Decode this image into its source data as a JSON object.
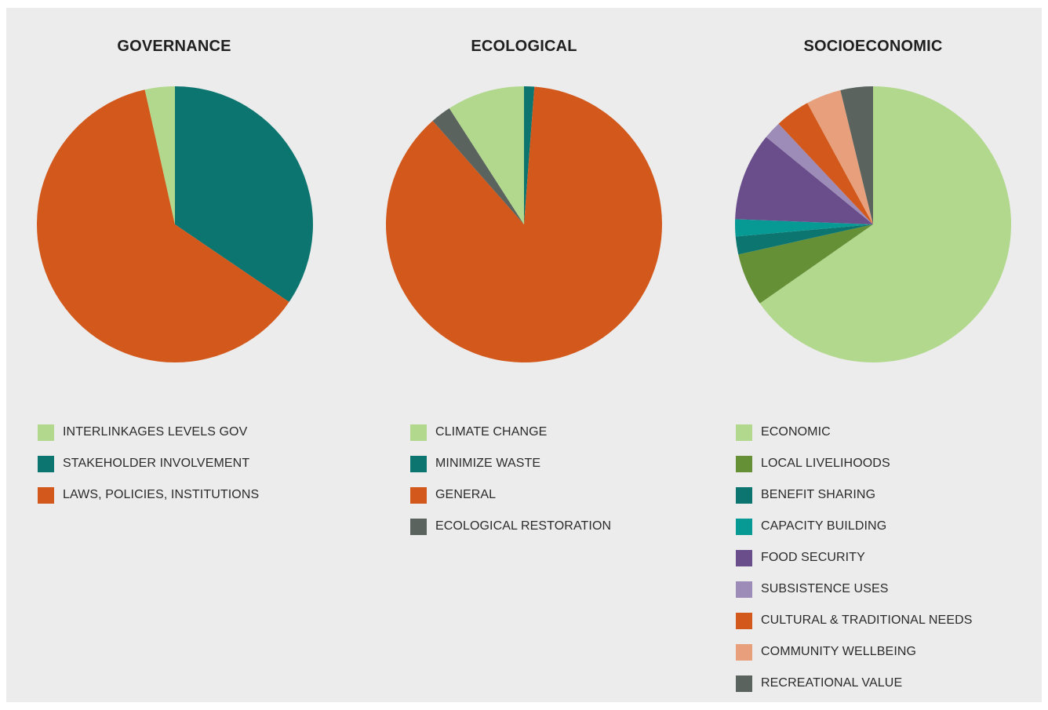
{
  "chart_data": [
    {
      "type": "pie",
      "title": "GOVERNANCE",
      "legend_placement": "bottom-left",
      "start_angle_deg": 0,
      "direction": "clockwise",
      "slices": [
        {
          "label": "STAKEHOLDER INVOLVEMENT",
          "value": 34.5,
          "color": "#0d7570"
        },
        {
          "label": "LAWS, POLICIES, INSTITUTIONS",
          "value": 62.0,
          "color": "#d2581b"
        },
        {
          "label": "INTERLINKAGES LEVELS GOV",
          "value": 3.5,
          "color": "#b1d88d"
        }
      ],
      "legend": [
        {
          "label": "INTERLINKAGES LEVELS GOV",
          "color": "#b1d88d"
        },
        {
          "label": "STAKEHOLDER INVOLVEMENT",
          "color": "#0d7570"
        },
        {
          "label": "LAWS, POLICIES, INSTITUTIONS",
          "color": "#d2581b"
        }
      ]
    },
    {
      "type": "pie",
      "title": "ECOLOGICAL",
      "legend_placement": "bottom-left",
      "start_angle_deg": 0,
      "direction": "clockwise",
      "slices": [
        {
          "label": "MINIMIZE WASTE",
          "value": 1.2,
          "color": "#0d7570"
        },
        {
          "label": "GENERAL",
          "value": 87.3,
          "color": "#d2581b"
        },
        {
          "label": "ECOLOGICAL RESTORATION",
          "value": 2.4,
          "color": "#5a635d"
        },
        {
          "label": "CLIMATE CHANGE",
          "value": 9.1,
          "color": "#b1d88d"
        }
      ],
      "legend": [
        {
          "label": "CLIMATE CHANGE",
          "color": "#b1d88d"
        },
        {
          "label": "MINIMIZE WASTE",
          "color": "#0d7570"
        },
        {
          "label": "GENERAL",
          "color": "#d2581b"
        },
        {
          "label": "ECOLOGICAL RESTORATION",
          "color": "#5a635d"
        }
      ]
    },
    {
      "type": "pie",
      "title": "SOCIOECONOMIC",
      "legend_placement": "bottom-left",
      "start_angle_deg": 0,
      "direction": "clockwise",
      "slices": [
        {
          "label": "ECONOMIC",
          "value": 65.3,
          "color": "#b1d88d"
        },
        {
          "label": "LOCAL LIVELIHOODS",
          "value": 6.2,
          "color": "#659036"
        },
        {
          "label": "BENEFIT SHARING",
          "value": 2.1,
          "color": "#0d7570"
        },
        {
          "label": "CAPACITY BUILDING",
          "value": 2.0,
          "color": "#079993"
        },
        {
          "label": "FOOD SECURITY",
          "value": 10.3,
          "color": "#6a4e8b"
        },
        {
          "label": "SUBSISTENCE USES",
          "value": 2.1,
          "color": "#9d8bb8"
        },
        {
          "label": "CULTURAL & TRADITIONAL NEEDS",
          "value": 4.1,
          "color": "#d2581b"
        },
        {
          "label": "COMMUNITY WELLBEING",
          "value": 4.1,
          "color": "#e8a07c"
        },
        {
          "label": "RECREATIONAL VALUE",
          "value": 3.8,
          "color": "#5a635d"
        }
      ],
      "legend": [
        {
          "label": "ECONOMIC",
          "color": "#b1d88d"
        },
        {
          "label": "LOCAL LIVELIHOODS",
          "color": "#659036"
        },
        {
          "label": "BENEFIT SHARING",
          "color": "#0d7570"
        },
        {
          "label": "CAPACITY BUILDING",
          "color": "#079993"
        },
        {
          "label": "FOOD SECURITY",
          "color": "#6a4e8b"
        },
        {
          "label": "SUBSISTENCE USES",
          "color": "#9d8bb8"
        },
        {
          "label": "CULTURAL & TRADITIONAL NEEDS",
          "color": "#d2581b"
        },
        {
          "label": "COMMUNITY WELLBEING",
          "color": "#e8a07c"
        },
        {
          "label": "RECREATIONAL VALUE",
          "color": "#5a635d"
        }
      ]
    }
  ]
}
